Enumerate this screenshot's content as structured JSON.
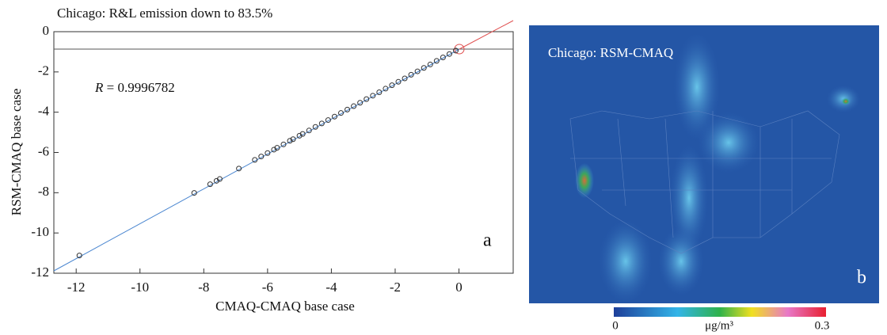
{
  "chart_data": {
    "type": "scatter",
    "title": "Chicago: R&L emission down to 83.5%",
    "xlabel": "CMAQ-CMAQ base case",
    "ylabel": "RSM-CMAQ base case",
    "annotation": {
      "symbol": "R",
      "text": "= 0.9996782"
    },
    "panel_label": "a",
    "color": "#333333",
    "xlim": [
      -12.7,
      1.7
    ],
    "xticks": [
      -12,
      -10,
      -8,
      -6,
      -4,
      -2,
      0
    ],
    "ylim": [
      -12,
      0
    ],
    "yticks": [
      0,
      -2,
      -4,
      -6,
      -8,
      -10,
      -12
    ],
    "x": [
      -11.9,
      -8.3,
      -7.8,
      -7.6,
      -7.5,
      -6.9,
      -6.4,
      -6.2,
      -6.0,
      -5.8,
      -5.7,
      -5.5,
      -5.3,
      -5.2,
      -5.0,
      -4.9,
      -4.7,
      -4.5,
      -4.3,
      -4.1,
      -3.9,
      -3.7,
      -3.5,
      -3.3,
      -3.1,
      -2.9,
      -2.7,
      -2.5,
      -2.3,
      -2.1,
      -1.9,
      -1.7,
      -1.5,
      -1.3,
      -1.1,
      -0.9,
      -0.7,
      -0.5,
      -0.3,
      -0.1
    ],
    "y": [
      -11.12,
      -8.01,
      -7.58,
      -7.41,
      -7.32,
      -6.8,
      -6.37,
      -6.2,
      -6.03,
      -5.86,
      -5.77,
      -5.6,
      -5.42,
      -5.34,
      -5.17,
      -5.08,
      -4.91,
      -4.73,
      -4.56,
      -4.39,
      -4.22,
      -4.04,
      -3.87,
      -3.7,
      -3.53,
      -3.35,
      -3.18,
      -3.01,
      -2.83,
      -2.66,
      -2.49,
      -2.32,
      -2.14,
      -1.97,
      -1.8,
      -1.63,
      -1.45,
      -1.28,
      -1.11,
      -0.94
    ]
  },
  "map_panel": {
    "title": "Chicago: RSM-CMAQ",
    "panel_label": "b",
    "colorbar": {
      "min_label": "0",
      "unit": "μg/m³",
      "max_label": "0.3"
    }
  }
}
